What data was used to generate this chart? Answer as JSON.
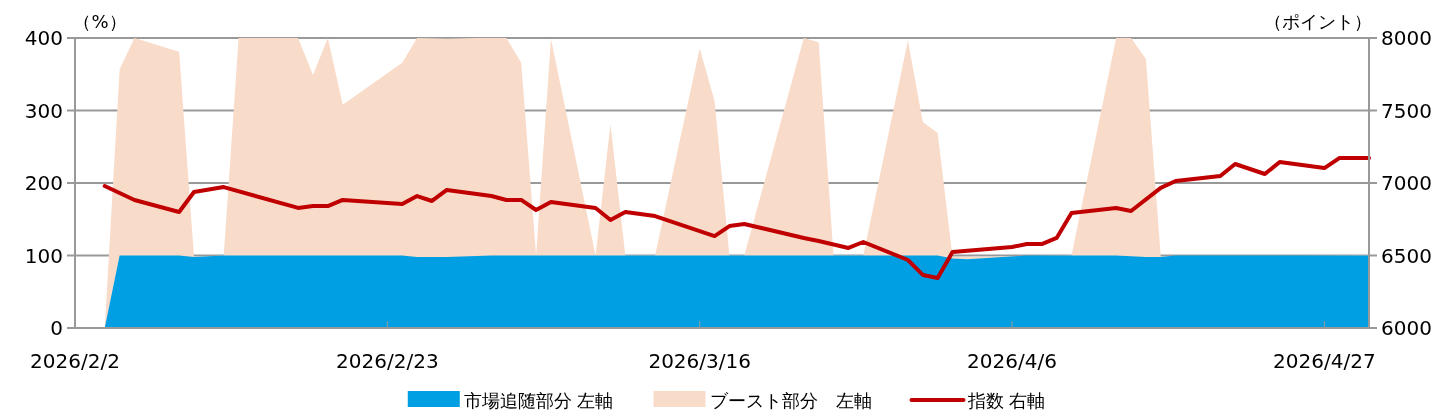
{
  "chart_data": {
    "type": "area",
    "ylabel": "（%）",
    "y2label": "（ポイント）",
    "xlim": [
      "2026-02-02",
      "2026-04-30"
    ],
    "xticks": [
      {
        "value": "2026-02-02",
        "label": "2026/2/2"
      },
      {
        "value": "2026-02-23",
        "label": "2026/2/23"
      },
      {
        "value": "2026-03-16",
        "label": "2026/3/16"
      },
      {
        "value": "2026-04-06",
        "label": "2026/4/6"
      },
      {
        "value": "2026-04-27",
        "label": "2026/4/27"
      }
    ],
    "ylim": [
      0,
      400
    ],
    "yticks": [
      0,
      100,
      200,
      300,
      400
    ],
    "y2lim": [
      6000,
      8000
    ],
    "y2ticks": [
      6000,
      6500,
      7000,
      7500,
      8000
    ],
    "grid": "y",
    "legend": "bottom",
    "series": [
      {
        "name": "市場追随部分 左軸",
        "color": "#009fe3",
        "x": [
          "2026-02-04",
          "2026-02-05",
          "2026-02-09",
          "2026-02-10",
          "2026-02-12",
          "2026-02-24",
          "2026-02-25",
          "2026-02-27",
          "2026-03-02",
          "2026-04-01",
          "2026-04-02",
          "2026-04-03",
          "2026-04-07",
          "2026-04-13",
          "2026-04-15",
          "2026-04-16",
          "2026-04-17",
          "2026-04-30"
        ],
        "values": [
          0,
          100,
          100,
          98,
          100,
          100,
          98,
          98,
          100,
          100,
          96,
          95,
          100,
          100,
          98,
          98,
          100,
          100
        ]
      },
      {
        "name": "ブースト部分　左軸",
        "color": "#f9dbc9",
        "x": [
          "2026-02-04",
          "2026-02-05",
          "2026-02-06",
          "2026-02-09",
          "2026-02-10",
          "2026-02-12",
          "2026-02-13",
          "2026-02-17",
          "2026-02-18",
          "2026-02-19",
          "2026-02-20",
          "2026-02-24",
          "2026-02-25",
          "2026-02-27",
          "2026-03-01",
          "2026-03-03",
          "2026-03-04",
          "2026-03-05",
          "2026-03-06",
          "2026-03-09",
          "2026-03-10",
          "2026-03-11",
          "2026-03-13",
          "2026-03-16",
          "2026-03-17",
          "2026-03-18",
          "2026-03-19",
          "2026-03-23",
          "2026-03-24",
          "2026-03-25",
          "2026-03-27",
          "2026-03-30",
          "2026-03-31",
          "2026-04-01",
          "2026-04-02",
          "2026-04-10",
          "2026-04-13",
          "2026-04-14",
          "2026-04-15",
          "2026-04-16",
          "2026-04-30"
        ],
        "values": [
          0,
          357,
          400,
          381,
          98,
          100,
          400,
          400,
          349,
          400,
          308,
          366,
          400,
          399,
          400,
          400,
          366,
          100,
          399,
          100,
          281,
          100,
          100,
          386,
          313,
          100,
          100,
          400,
          394,
          100,
          100,
          397,
          284,
          269,
          98,
          100,
          400,
          400,
          371,
          98,
          100
        ]
      },
      {
        "name": "指数 右軸",
        "type": "line",
        "axis": "y2",
        "color": "#c00000",
        "x": [
          "2026-02-04",
          "2026-02-06",
          "2026-02-09",
          "2026-02-10",
          "2026-02-12",
          "2026-02-17",
          "2026-02-18",
          "2026-02-19",
          "2026-02-20",
          "2026-02-24",
          "2026-02-25",
          "2026-02-26",
          "2026-02-27",
          "2026-03-02",
          "2026-03-03",
          "2026-03-04",
          "2026-03-05",
          "2026-03-06",
          "2026-03-09",
          "2026-03-10",
          "2026-03-11",
          "2026-03-13",
          "2026-03-17",
          "2026-03-18",
          "2026-03-19",
          "2026-03-23",
          "2026-03-24",
          "2026-03-26",
          "2026-03-27",
          "2026-03-30",
          "2026-03-31",
          "2026-04-01",
          "2026-04-02",
          "2026-04-06",
          "2026-04-07",
          "2026-04-08",
          "2026-04-09",
          "2026-04-10",
          "2026-04-13",
          "2026-04-14",
          "2026-04-16",
          "2026-04-17",
          "2026-04-20",
          "2026-04-21",
          "2026-04-23",
          "2026-04-24",
          "2026-04-27",
          "2026-04-28",
          "2026-04-30"
        ],
        "values": [
          6979,
          6883,
          6800,
          6938,
          6972,
          6828,
          6841,
          6841,
          6883,
          6855,
          6910,
          6876,
          6952,
          6910,
          6883,
          6883,
          6814,
          6869,
          6828,
          6745,
          6800,
          6772,
          6634,
          6703,
          6717,
          6621,
          6600,
          6552,
          6593,
          6469,
          6366,
          6345,
          6524,
          6559,
          6579,
          6579,
          6621,
          6793,
          6828,
          6807,
          6966,
          7014,
          7048,
          7131,
          7062,
          7145,
          7103,
          7172,
          7172
        ]
      }
    ]
  }
}
